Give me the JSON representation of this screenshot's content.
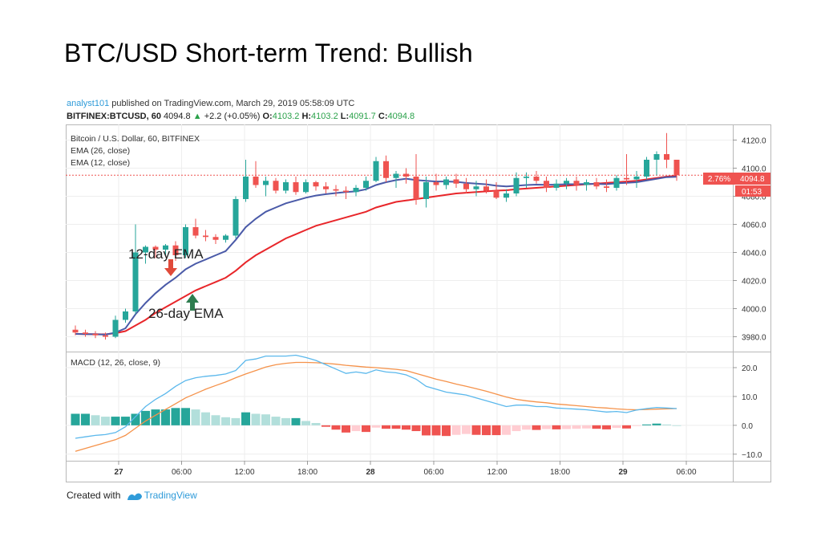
{
  "headline": "BTC/USD Short-term Trend: Bullish",
  "publish": {
    "author": "analyst101",
    "text": " published on TradingView.com, March 29, 2019 05:58:09 UTC"
  },
  "quote": {
    "symbol": "BITFINEX:BTCUSD, 60",
    "last": "4094.8",
    "change": "+2.2 (+0.05%)",
    "o_label": "O:",
    "o": "4103.2",
    "h_label": "H:",
    "h": "4103.2",
    "l_label": "L:",
    "l": "4091.7",
    "c_label": "C:",
    "c": "4094.8"
  },
  "chart_data": [
    {
      "type": "candlestick",
      "legend": [
        "Bitcoin / U.S. Dollar, 60, BITFINEX",
        "EMA (26, close)",
        "EMA (12, close)"
      ],
      "ylim": [
        3970,
        4130
      ],
      "y_ticks": [
        "4120.0",
        "4100.0",
        "4080.0",
        "4060.0",
        "4040.0",
        "4020.0",
        "4000.0",
        "3980.0"
      ],
      "x_ticks": [
        "27",
        "06:00",
        "12:00",
        "18:00",
        "28",
        "06:00",
        "12:00",
        "18:00",
        "29",
        "06:00"
      ],
      "price_label": "4094.8",
      "percent_label": "2.76%",
      "countdown_label": "01:53",
      "annotations": {
        "ema12": "12-day EMA",
        "ema26": "26-day EMA"
      },
      "colors": {
        "up": "#26a69a",
        "down": "#ef5350",
        "ema12": "#4a5aa8",
        "ema26": "#e8262a",
        "price_box": "#ef5350"
      },
      "candles": [
        [
          3985,
          3988,
          3981,
          3983
        ],
        [
          3983,
          3985,
          3980,
          3982
        ],
        [
          3982,
          3984,
          3979,
          3981
        ],
        [
          3981,
          3983,
          3978,
          3980
        ],
        [
          3980,
          3995,
          3979,
          3992
        ],
        [
          3992,
          4000,
          3990,
          3998
        ],
        [
          3998,
          4060,
          3996,
          4040
        ],
        [
          4040,
          4045,
          4032,
          4044
        ],
        [
          4044,
          4045,
          4036,
          4042
        ],
        [
          4042,
          4046,
          4038,
          4045
        ],
        [
          4045,
          4048,
          4034,
          4038
        ],
        [
          4038,
          4060,
          4036,
          4058
        ],
        [
          4058,
          4064,
          4050,
          4052
        ],
        [
          4052,
          4056,
          4048,
          4051
        ],
        [
          4051,
          4053,
          4046,
          4049
        ],
        [
          4049,
          4053,
          4047,
          4052
        ],
        [
          4052,
          4080,
          4050,
          4078
        ],
        [
          4078,
          4106,
          4076,
          4094
        ],
        [
          4094,
          4105,
          4086,
          4088
        ],
        [
          4088,
          4094,
          4080,
          4091
        ],
        [
          4091,
          4093,
          4082,
          4084
        ],
        [
          4084,
          4092,
          4082,
          4090
        ],
        [
          4090,
          4094,
          4081,
          4083
        ],
        [
          4083,
          4092,
          4082,
          4090
        ],
        [
          4090,
          4091,
          4084,
          4087
        ],
        [
          4087,
          4090,
          4082,
          4085
        ],
        [
          4085,
          4088,
          4080,
          4084
        ],
        [
          4084,
          4087,
          4078,
          4083
        ],
        [
          4083,
          4088,
          4080,
          4086
        ],
        [
          4086,
          4094,
          4084,
          4091
        ],
        [
          4091,
          4108,
          4090,
          4105
        ],
        [
          4105,
          4109,
          4090,
          4093
        ],
        [
          4093,
          4098,
          4086,
          4096
        ],
        [
          4096,
          4100,
          4089,
          4094
        ],
        [
          4094,
          4110,
          4074,
          4078
        ],
        [
          4078,
          4094,
          4072,
          4090
        ],
        [
          4090,
          4096,
          4084,
          4088
        ],
        [
          4088,
          4094,
          4085,
          4092
        ],
        [
          4092,
          4096,
          4086,
          4089
        ],
        [
          4089,
          4093,
          4082,
          4085
        ],
        [
          4085,
          4091,
          4080,
          4087
        ],
        [
          4087,
          4092,
          4082,
          4084
        ],
        [
          4084,
          4090,
          4078,
          4079
        ],
        [
          4079,
          4085,
          4076,
          4082
        ],
        [
          4082,
          4097,
          4080,
          4093
        ],
        [
          4093,
          4097,
          4086,
          4094
        ],
        [
          4094,
          4098,
          4089,
          4091
        ],
        [
          4091,
          4094,
          4083,
          4086
        ],
        [
          4086,
          4092,
          4084,
          4089
        ],
        [
          4089,
          4093,
          4085,
          4091
        ],
        [
          4091,
          4094,
          4084,
          4088
        ],
        [
          4088,
          4092,
          4084,
          4090
        ],
        [
          4090,
          4093,
          4085,
          4087
        ],
        [
          4087,
          4092,
          4083,
          4086
        ],
        [
          4086,
          4095,
          4084,
          4093
        ],
        [
          4093,
          4110,
          4088,
          4092
        ],
        [
          4092,
          4098,
          4086,
          4094
        ],
        [
          4094,
          4108,
          4092,
          4106
        ],
        [
          4106,
          4112,
          4095,
          4110
        ],
        [
          4110,
          4125,
          4100,
          4106
        ],
        [
          4106,
          4106,
          4091,
          4095
        ]
      ],
      "ema26": [
        3982,
        3981.9,
        3981.8,
        3981.7,
        3982.5,
        3984,
        3988,
        3992,
        3997,
        4001,
        4005,
        4009,
        4013,
        4016,
        4019,
        4022,
        4027,
        4033,
        4038,
        4042,
        4046,
        4050,
        4053,
        4056,
        4059,
        4061,
        4063,
        4065,
        4067,
        4069,
        4072,
        4074,
        4076,
        4077,
        4078,
        4079,
        4080,
        4081,
        4082,
        4082.5,
        4083,
        4083.5,
        4084,
        4084.3,
        4085,
        4085.5,
        4086,
        4086.5,
        4087,
        4087.5,
        4088,
        4088.5,
        4089,
        4089.5,
        4090,
        4090.5,
        4091,
        4092,
        4093,
        4094,
        4094.6
      ],
      "ema12": [
        3982,
        3981.9,
        3981.7,
        3981.5,
        3983,
        3986,
        3996,
        4004,
        4011,
        4017,
        4022,
        4028,
        4032,
        4035,
        4038,
        4041,
        4049,
        4058,
        4064,
        4069,
        4072,
        4075,
        4077,
        4079,
        4080.5,
        4081.5,
        4082.3,
        4083,
        4083.5,
        4085,
        4088,
        4090,
        4091.5,
        4092.5,
        4091.5,
        4091,
        4090.5,
        4090.5,
        4090.3,
        4089.5,
        4089,
        4088.5,
        4087.5,
        4087,
        4087.5,
        4088,
        4088.3,
        4088.2,
        4088.3,
        4088.6,
        4088.6,
        4088.8,
        4088.8,
        4088.6,
        4089.2,
        4089.6,
        4090,
        4091.2,
        4092.4,
        4093.6,
        4093.8
      ]
    },
    {
      "type": "line+bar",
      "legend": [
        "MACD (12, 26, close, 9)"
      ],
      "ylim": [
        -12,
        25
      ],
      "y_ticks": [
        "20.0",
        "10.0",
        "0.0",
        "−10.0"
      ],
      "colors": {
        "macd": "#5bb8ec",
        "signal": "#f5924a",
        "hist_up_strong": "#26a69a",
        "hist_up_weak": "#b2dfdb",
        "hist_down_strong": "#ef5350",
        "hist_down_weak": "#ffcdd2"
      },
      "macd": [
        -4.5,
        -4,
        -3.5,
        -3.2,
        -2.5,
        -0.5,
        3,
        6.5,
        9,
        11,
        13.5,
        15.5,
        16.5,
        17,
        17.3,
        17.8,
        19,
        22.5,
        23,
        24,
        24,
        24,
        24.3,
        23.5,
        22.5,
        21,
        19.5,
        18,
        18.5,
        18,
        19.2,
        18.5,
        18.2,
        17.5,
        16,
        13.5,
        12.5,
        11.5,
        11,
        10.5,
        9.5,
        8.5,
        7.5,
        6.5,
        7,
        7,
        6.5,
        6.5,
        6,
        5.8,
        5.6,
        5.4,
        5,
        4.6,
        4.8,
        4.4,
        5.3,
        5.8,
        6.2,
        6,
        5.8
      ],
      "signal": [
        -9,
        -8,
        -7,
        -6,
        -5,
        -3.5,
        -1,
        1.5,
        3.5,
        5.5,
        7.5,
        9.5,
        11,
        12.5,
        13.8,
        15,
        16.5,
        17.8,
        19,
        20.2,
        21,
        21.5,
        21.8,
        21.8,
        21.7,
        21.5,
        21.2,
        20.8,
        20.5,
        20.2,
        20,
        19.7,
        19.4,
        19,
        18,
        17,
        16,
        15.2,
        14.3,
        13.5,
        12.7,
        11.8,
        10.8,
        9.8,
        9,
        8.5,
        8.1,
        7.8,
        7.4,
        7.1,
        6.8,
        6.5,
        6.2,
        6,
        5.7,
        5.5,
        5.4,
        5.5,
        5.6,
        5.7,
        5.8
      ],
      "histogram": [
        4,
        4,
        3.5,
        3,
        3,
        3,
        4,
        5,
        5.5,
        5.5,
        6,
        6,
        5.5,
        4.5,
        3.5,
        2.8,
        2.5,
        4.5,
        4,
        3.8,
        3,
        2.5,
        2.5,
        1.5,
        0.8,
        -0.5,
        -1.5,
        -2.5,
        -2,
        -2.3,
        -0.8,
        -1.2,
        -1.2,
        -1.5,
        -2,
        -3.5,
        -3.5,
        -3.7,
        -3.3,
        -3,
        -3.3,
        -3.4,
        -3.4,
        -3.3,
        -2,
        -1.5,
        -1.6,
        -1.3,
        -1.4,
        -1.3,
        -1.2,
        -1.1,
        -1.2,
        -1.4,
        -0.9,
        -1.1,
        -0.1,
        0.3,
        0.6,
        0.3,
        0
      ]
    }
  ]
}
